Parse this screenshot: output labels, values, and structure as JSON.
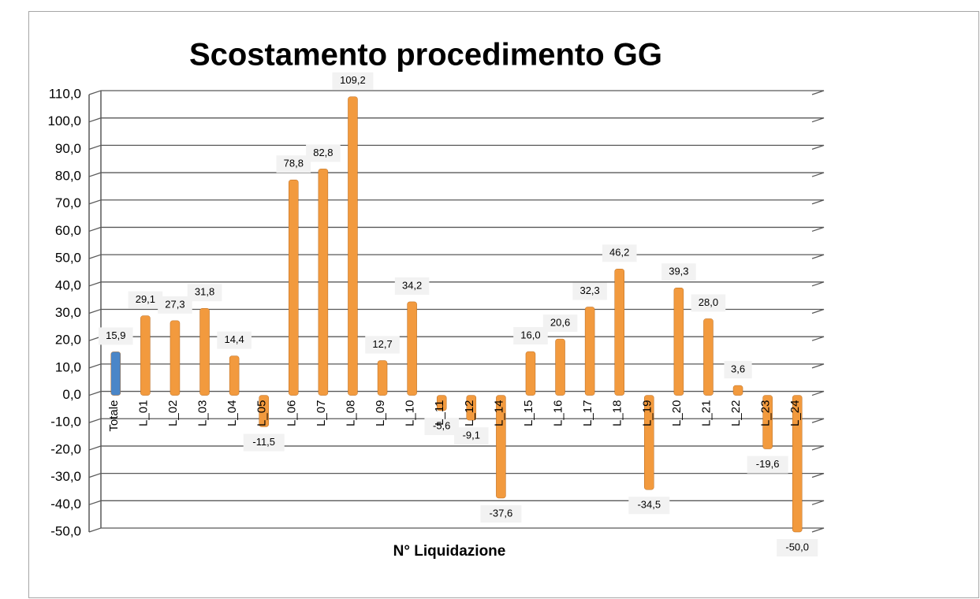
{
  "chart_data": {
    "type": "bar",
    "title": "Scostamento procedimento GG",
    "x_label": "N° Liquidazione",
    "categories": [
      "Totale",
      "L_01",
      "L_02",
      "L_03",
      "L_04",
      "L_05",
      "L_06",
      "L_07",
      "L_08",
      "L_09",
      "L_10",
      "L_11",
      "L_12",
      "L_14",
      "L_15",
      "L_16",
      "L_17",
      "L_18",
      "L_19",
      "L_20",
      "L_21",
      "L_22",
      "L_23",
      "L_24"
    ],
    "values": [
      15.9,
      29.1,
      27.3,
      31.8,
      14.4,
      -11.5,
      78.8,
      82.8,
      109.2,
      12.7,
      34.2,
      -5.6,
      -9.1,
      -37.6,
      16.0,
      20.6,
      32.3,
      46.2,
      -34.5,
      39.3,
      28.0,
      3.6,
      -19.6,
      -50.0
    ],
    "value_labels": [
      "15,9",
      "29,1",
      "27,3",
      "31,8",
      "14,4",
      "-11,5",
      "78,8",
      "82,8",
      "109,2",
      "12,7",
      "34,2",
      "-5,6",
      "-9,1",
      "-37,6",
      "16,0",
      "20,6",
      "32,3",
      "46,2",
      "-34,5",
      "39,3",
      "28,0",
      "3,6",
      "-19,6",
      "-50,0"
    ],
    "colors": [
      "#4a86c8",
      "#f29a3e",
      "#f29a3e",
      "#f29a3e",
      "#f29a3e",
      "#f29a3e",
      "#f29a3e",
      "#f29a3e",
      "#f29a3e",
      "#f29a3e",
      "#f29a3e",
      "#f29a3e",
      "#f29a3e",
      "#f29a3e",
      "#f29a3e",
      "#f29a3e",
      "#f29a3e",
      "#f29a3e",
      "#f29a3e",
      "#f29a3e",
      "#f29a3e",
      "#f29a3e",
      "#f29a3e",
      "#f29a3e"
    ],
    "ylim": [
      -50,
      110
    ],
    "yticks": [
      {
        "value": -50,
        "label": "-50,0"
      },
      {
        "value": -40,
        "label": "-40,0"
      },
      {
        "value": -30,
        "label": "-30,0"
      },
      {
        "value": -20,
        "label": "-20,0"
      },
      {
        "value": -10,
        "label": "-10,0"
      },
      {
        "value": 0,
        "label": "0,0"
      },
      {
        "value": 10,
        "label": "10,0"
      },
      {
        "value": 20,
        "label": "20,0"
      },
      {
        "value": 30,
        "label": "30,0"
      },
      {
        "value": 40,
        "label": "40,0"
      },
      {
        "value": 50,
        "label": "50,0"
      },
      {
        "value": 60,
        "label": "60,0"
      },
      {
        "value": 70,
        "label": "70,0"
      },
      {
        "value": 80,
        "label": "80,0"
      },
      {
        "value": 90,
        "label": "90,0"
      },
      {
        "value": 100,
        "label": "100,0"
      },
      {
        "value": 110,
        "label": "110,0"
      }
    ],
    "grid": true
  }
}
